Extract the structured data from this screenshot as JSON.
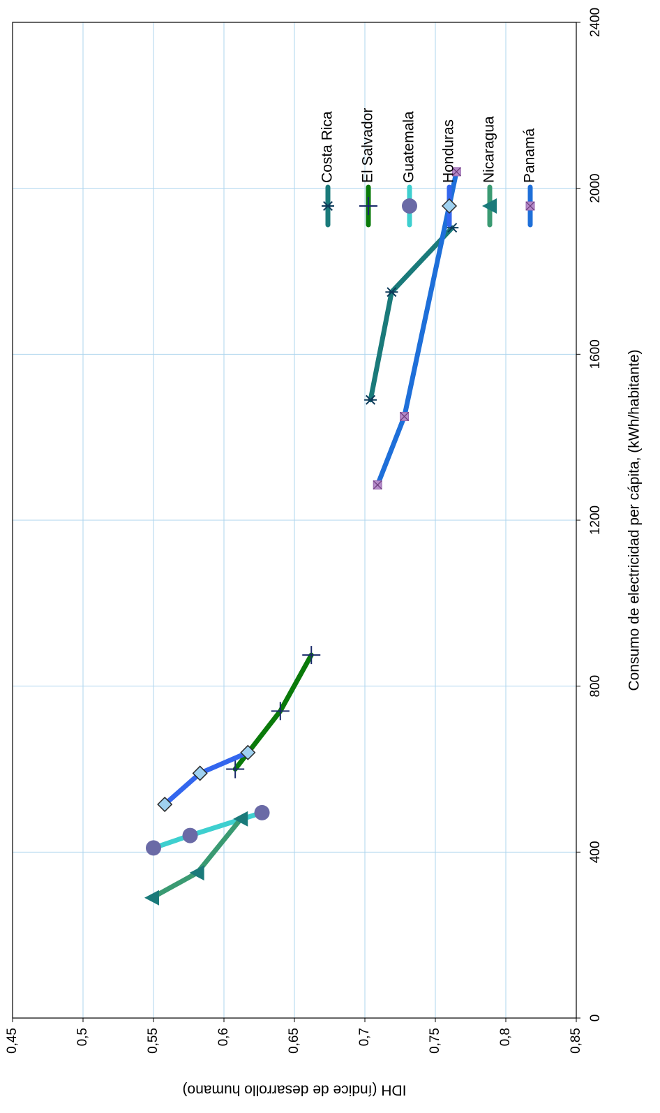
{
  "chart_data": {
    "type": "line",
    "xlabel": "Consumo de electricidad per cápita, (kWh/habitante)",
    "ylabel": "IDH (índice de desarrollo humano)",
    "xlim": [
      0,
      2400
    ],
    "ylim": [
      0.45,
      0.85
    ],
    "xticks": [
      "0",
      "400",
      "800",
      "1200",
      "1600",
      "2000",
      "2400"
    ],
    "yticks": [
      "0,45",
      "0,5",
      "0,55",
      "0,6",
      "0,65",
      "0,7",
      "0,75",
      "0,8",
      "0,85"
    ],
    "grid": true,
    "legend_position": "right",
    "series": [
      {
        "name": "Costa Rica",
        "color": "#1a7a7a",
        "marker": "asterisk",
        "points": [
          [
            1490,
            0.704
          ],
          [
            1750,
            0.719
          ],
          [
            1905,
            0.762
          ]
        ]
      },
      {
        "name": "El  Salvador",
        "color": "#0a7a0a",
        "marker": "plus",
        "points": [
          [
            600,
            0.608
          ],
          [
            740,
            0.64
          ],
          [
            875,
            0.662
          ]
        ]
      },
      {
        "name": "Guatemala",
        "color": "#3ecfcf",
        "marker": "circle",
        "points": [
          [
            410,
            0.55
          ],
          [
            440,
            0.576
          ],
          [
            495,
            0.627
          ]
        ]
      },
      {
        "name": "Honduras",
        "color": "#3366ee",
        "marker": "diamond",
        "points": [
          [
            515,
            0.558
          ],
          [
            590,
            0.583
          ],
          [
            640,
            0.617
          ]
        ]
      },
      {
        "name": "Nicaragua",
        "color": "#3a9a72",
        "marker": "triangle",
        "points": [
          [
            290,
            0.549
          ],
          [
            350,
            0.581
          ],
          [
            480,
            0.612
          ]
        ]
      },
      {
        "name": "Panamá",
        "color": "#1e6fd9",
        "marker": "x-square",
        "points": [
          [
            1285,
            0.709
          ],
          [
            1450,
            0.728
          ],
          [
            2040,
            0.765
          ]
        ]
      }
    ]
  }
}
